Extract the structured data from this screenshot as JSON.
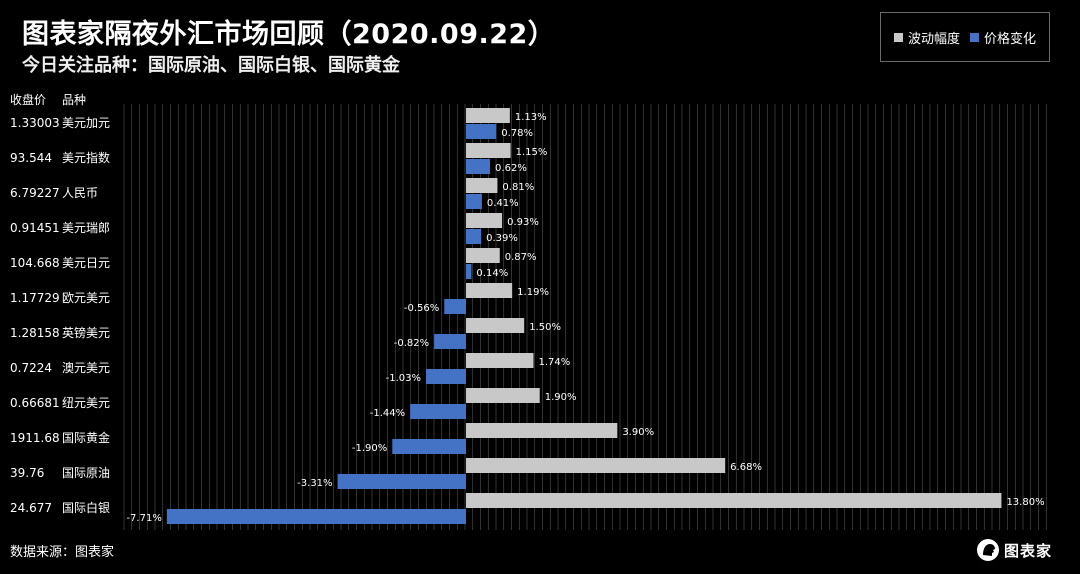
{
  "header": {
    "title": "图表家隔夜外汇市场回顾（2020.09.22）",
    "subtitle": "今日关注品种：国际原油、国际白银、国际黄金"
  },
  "table_headers": {
    "price": "收盘价",
    "name": "品种"
  },
  "footer": {
    "source": "数据来源：图表家",
    "logo_text": "图表家"
  },
  "colors": {
    "volatility": "#c8c8c8",
    "change": "#4472c4",
    "background": "#000000"
  },
  "chart_data": {
    "type": "bar",
    "orientation": "horizontal",
    "title": "图表家隔夜外汇市场回顾（2020.09.22）",
    "legend": "top-right",
    "grid": true,
    "value_suffix": "%",
    "categories": [
      "美元加元",
      "美元指数",
      "人民币",
      "美元瑞郎",
      "美元日元",
      "欧元美元",
      "英镑美元",
      "澳元美元",
      "纽元美元",
      "国际黄金",
      "国际原油",
      "国际白银"
    ],
    "prices": [
      "1.33003",
      "93.544",
      "6.79227",
      "0.91451",
      "104.668",
      "1.17729",
      "1.28158",
      "0.7224",
      "0.66681",
      "1911.68",
      "39.76",
      "24.677"
    ],
    "series": [
      {
        "name": "波动幅度",
        "values": [
          1.13,
          1.15,
          0.81,
          0.93,
          0.87,
          1.19,
          1.5,
          1.74,
          1.9,
          3.9,
          6.68,
          13.8
        ]
      },
      {
        "name": "价格变化",
        "values": [
          0.78,
          0.62,
          0.41,
          0.39,
          0.14,
          -0.56,
          -0.82,
          -1.03,
          -1.44,
          -1.9,
          -3.31,
          -7.71
        ]
      }
    ]
  }
}
